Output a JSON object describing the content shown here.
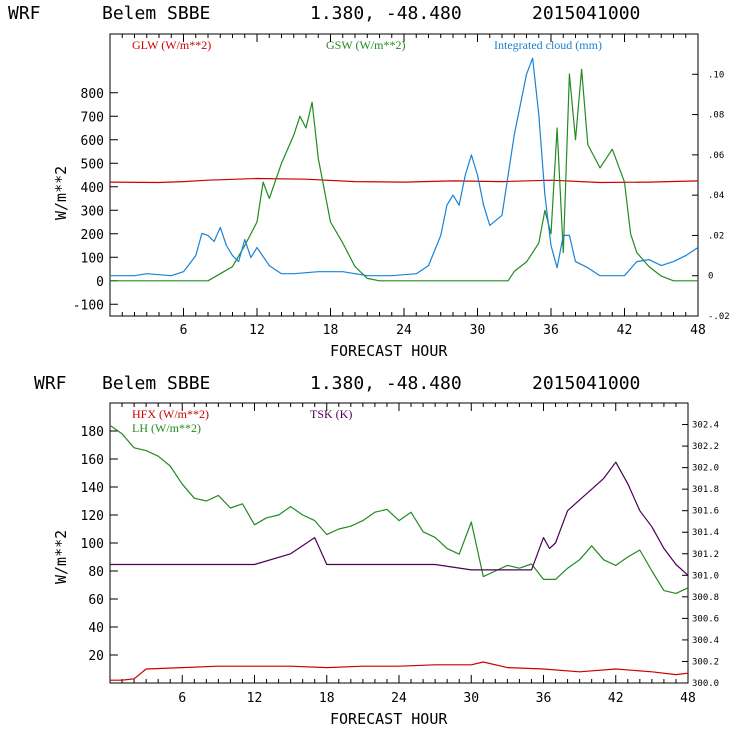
{
  "chart_data": [
    {
      "type": "line",
      "title": {
        "model": "WRF",
        "station": "Belem SBBE",
        "coords": "1.380, -48.480",
        "run": "2015041000"
      },
      "xlabel": "FORECAST HOUR",
      "ylabel": "W/m**2",
      "xlim": [
        0,
        48
      ],
      "ylim": [
        -150,
        1050
      ],
      "y2lim": [
        -0.02,
        0.12
      ],
      "x_ticks": [
        "6",
        "12",
        "18",
        "24",
        "30",
        "36",
        "42",
        "48"
      ],
      "y_ticks": [
        "-100",
        "0",
        "100",
        "200",
        "300",
        "400",
        "500",
        "600",
        "700",
        "800"
      ],
      "y2_ticks": [
        ".10",
        ".08",
        ".06",
        ".04",
        ".02",
        "0",
        "-.02"
      ],
      "series": [
        {
          "name": "GLW (W/m**2)",
          "color": "#cc0000",
          "axis": "left",
          "x": [
            0,
            4,
            6,
            8,
            12,
            16,
            20,
            24,
            28,
            32,
            36,
            40,
            44,
            48
          ],
          "y": [
            420,
            418,
            422,
            428,
            435,
            432,
            422,
            420,
            425,
            422,
            428,
            418,
            420,
            425
          ]
        },
        {
          "name": "GSW (W/m**2)",
          "color": "#228b22",
          "axis": "left",
          "x": [
            0,
            8,
            9,
            10,
            11,
            12,
            12.5,
            13,
            14,
            15,
            15.5,
            16,
            16.5,
            17,
            18,
            19,
            20,
            21,
            22,
            30,
            32.5,
            33,
            34,
            34.5,
            35,
            35.5,
            36,
            36.5,
            37,
            37.5,
            38,
            38.5,
            39,
            40,
            41,
            42,
            42.5,
            43,
            44,
            45,
            46,
            47,
            48
          ],
          "y": [
            0,
            0,
            30,
            60,
            150,
            250,
            420,
            350,
            500,
            620,
            700,
            650,
            760,
            520,
            250,
            160,
            60,
            10,
            0,
            0,
            0,
            40,
            80,
            120,
            160,
            300,
            200,
            650,
            120,
            880,
            600,
            900,
            580,
            480,
            560,
            420,
            200,
            120,
            60,
            20,
            0,
            0,
            0
          ]
        },
        {
          "name": "Integrated cloud (mm)",
          "color": "#1a82d6",
          "axis": "right",
          "x": [
            0,
            2,
            3,
            5,
            6,
            7,
            7.5,
            8,
            8.5,
            9,
            9.5,
            10,
            10.5,
            11,
            11.5,
            12,
            13,
            14,
            15,
            17,
            19,
            21,
            23,
            25,
            26,
            27,
            27.5,
            28,
            28.5,
            29,
            29.5,
            30,
            30.5,
            31,
            32,
            33,
            34,
            34.5,
            35,
            35.5,
            36,
            36.5,
            37,
            37.5,
            38,
            39,
            40,
            41,
            42,
            43,
            44,
            45,
            46,
            47,
            48
          ],
          "y": [
            0,
            0,
            0.001,
            0,
            0.002,
            0.01,
            0.021,
            0.02,
            0.017,
            0.024,
            0.015,
            0.01,
            0.007,
            0.018,
            0.009,
            0.014,
            0.005,
            0.001,
            0.001,
            0.002,
            0.002,
            0,
            0,
            0.001,
            0.005,
            0.02,
            0.035,
            0.04,
            0.035,
            0.05,
            0.06,
            0.05,
            0.035,
            0.025,
            0.03,
            0.07,
            0.1,
            0.108,
            0.08,
            0.04,
            0.015,
            0.004,
            0.02,
            0.02,
            0.007,
            0.004,
            0,
            0,
            0,
            0.007,
            0.008,
            0.005,
            0.007,
            0.01,
            0.014
          ]
        }
      ]
    },
    {
      "type": "line",
      "title": {
        "model": "WRF",
        "station": "Belem SBBE",
        "coords": "1.380, -48.480",
        "run": "2015041000"
      },
      "xlabel": "FORECAST HOUR",
      "ylabel": "W/m**2",
      "xlim": [
        0,
        48
      ],
      "ylim": [
        0,
        200
      ],
      "y2lim": [
        300.0,
        302.6
      ],
      "x_ticks": [
        "6",
        "12",
        "18",
        "24",
        "30",
        "36",
        "42",
        "48"
      ],
      "y_ticks": [
        "20",
        "40",
        "60",
        "80",
        "100",
        "120",
        "140",
        "160",
        "180"
      ],
      "y2_ticks": [
        "302.4",
        "302.2",
        "302.0",
        "301.8",
        "301.6",
        "301.4",
        "301.2",
        "301.0",
        "300.8",
        "300.6",
        "300.4",
        "300.2",
        "300.0"
      ],
      "series": [
        {
          "name": "HFX (W/m**2)",
          "color": "#cc0000",
          "axis": "left",
          "x": [
            0,
            1,
            2,
            3,
            6,
            9,
            12,
            15,
            18,
            21,
            24,
            27,
            30,
            31,
            33,
            36,
            39,
            42,
            45,
            47,
            48
          ],
          "y": [
            2,
            2,
            3,
            10,
            11,
            12,
            12,
            12,
            11,
            12,
            12,
            13,
            13,
            15,
            11,
            10,
            8,
            10,
            8,
            6,
            7
          ]
        },
        {
          "name": "LH (W/m**2)",
          "color": "#228b22",
          "axis": "left",
          "x": [
            0,
            1,
            2,
            3,
            4,
            5,
            6,
            7,
            8,
            9,
            10,
            11,
            12,
            13,
            14,
            15,
            16,
            17,
            18,
            19,
            20,
            21,
            22,
            23,
            24,
            25,
            26,
            27,
            28,
            29,
            30,
            31,
            32,
            33,
            34,
            35,
            36,
            37,
            38,
            39,
            40,
            41,
            42,
            43,
            44,
            45,
            46,
            47,
            48
          ],
          "y": [
            184,
            178,
            168,
            166,
            162,
            155,
            142,
            132,
            130,
            134,
            125,
            128,
            113,
            118,
            120,
            126,
            120,
            116,
            106,
            110,
            112,
            116,
            122,
            124,
            116,
            122,
            108,
            104,
            96,
            92,
            115,
            76,
            80,
            84,
            82,
            85,
            74,
            74,
            82,
            88,
            98,
            88,
            84,
            90,
            95,
            80,
            66,
            64,
            68
          ]
        },
        {
          "name": "TSK (K)",
          "color": "#4b0055",
          "axis": "right",
          "x": [
            0,
            3,
            6,
            9,
            12,
            15,
            17,
            18,
            21,
            24,
            27,
            30,
            33,
            35,
            36,
            36.5,
            37,
            38,
            39,
            40,
            41,
            42,
            43,
            44,
            45,
            46,
            47,
            48
          ],
          "y": [
            301.1,
            301.1,
            301.1,
            301.1,
            301.1,
            301.2,
            301.35,
            301.1,
            301.1,
            301.1,
            301.1,
            301.05,
            301.05,
            301.05,
            301.35,
            301.25,
            301.3,
            301.6,
            301.7,
            301.8,
            301.9,
            302.05,
            301.85,
            301.6,
            301.45,
            301.25,
            301.1,
            301.0
          ]
        }
      ]
    }
  ]
}
